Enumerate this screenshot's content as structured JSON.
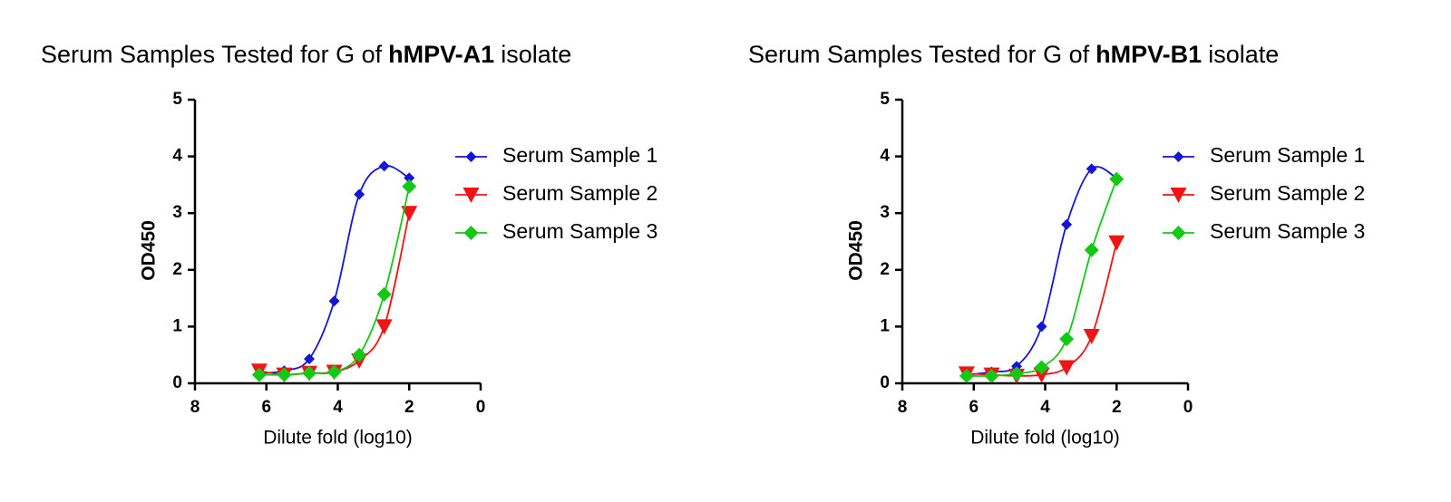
{
  "chart_data": [
    {
      "type": "scatter",
      "title_parts": {
        "prefix": "Serum Samples Tested for G of",
        "emphasis": "hMPV-A1",
        "suffix": "isolate"
      },
      "xlabel": "Dilute fold (log10)",
      "ylabel": "OD450",
      "xlim": [
        8,
        0
      ],
      "xticks": [
        8,
        6,
        4,
        2,
        0
      ],
      "ylim": [
        0,
        5
      ],
      "yticks": [
        0,
        1,
        2,
        3,
        4,
        5
      ],
      "x": [
        6.2,
        5.5,
        4.8,
        4.1,
        3.4,
        2.7,
        2.0
      ],
      "series": [
        {
          "name": "Serum Sample 1",
          "color": "#1515d8",
          "marker": "diamond",
          "values": [
            0.18,
            0.22,
            0.43,
            1.45,
            3.33,
            3.83,
            3.62
          ]
        },
        {
          "name": "Serum Sample 2",
          "color": "#f01515",
          "marker": "triangle-down",
          "values": [
            0.22,
            0.15,
            0.18,
            0.2,
            0.4,
            1.0,
            3.0
          ]
        },
        {
          "name": "Serum Sample 3",
          "color": "#15c815",
          "marker": "diamond-large",
          "values": [
            0.15,
            0.15,
            0.18,
            0.2,
            0.5,
            1.57,
            3.47
          ]
        }
      ]
    },
    {
      "type": "scatter",
      "title_parts": {
        "prefix": "Serum Samples Tested for G of",
        "emphasis": "hMPV-B1",
        "suffix": "isolate"
      },
      "xlabel": "Dilute fold (log10)",
      "ylabel": "OD450",
      "xlim": [
        8,
        0
      ],
      "xticks": [
        8,
        6,
        4,
        2,
        0
      ],
      "ylim": [
        0,
        5
      ],
      "yticks": [
        0,
        1,
        2,
        3,
        4,
        5
      ],
      "x": [
        6.2,
        5.5,
        4.8,
        4.1,
        3.4,
        2.7,
        2.0
      ],
      "series": [
        {
          "name": "Serum Sample 1",
          "color": "#1515d8",
          "marker": "diamond",
          "values": [
            0.15,
            0.2,
            0.3,
            1.0,
            2.8,
            3.78,
            3.62
          ]
        },
        {
          "name": "Serum Sample 2",
          "color": "#f01515",
          "marker": "triangle-down",
          "values": [
            0.17,
            0.15,
            0.13,
            0.15,
            0.28,
            0.83,
            2.48
          ]
        },
        {
          "name": "Serum Sample 3",
          "color": "#15c815",
          "marker": "diamond-large",
          "values": [
            0.13,
            0.13,
            0.17,
            0.28,
            0.78,
            2.35,
            3.6
          ]
        }
      ]
    }
  ]
}
